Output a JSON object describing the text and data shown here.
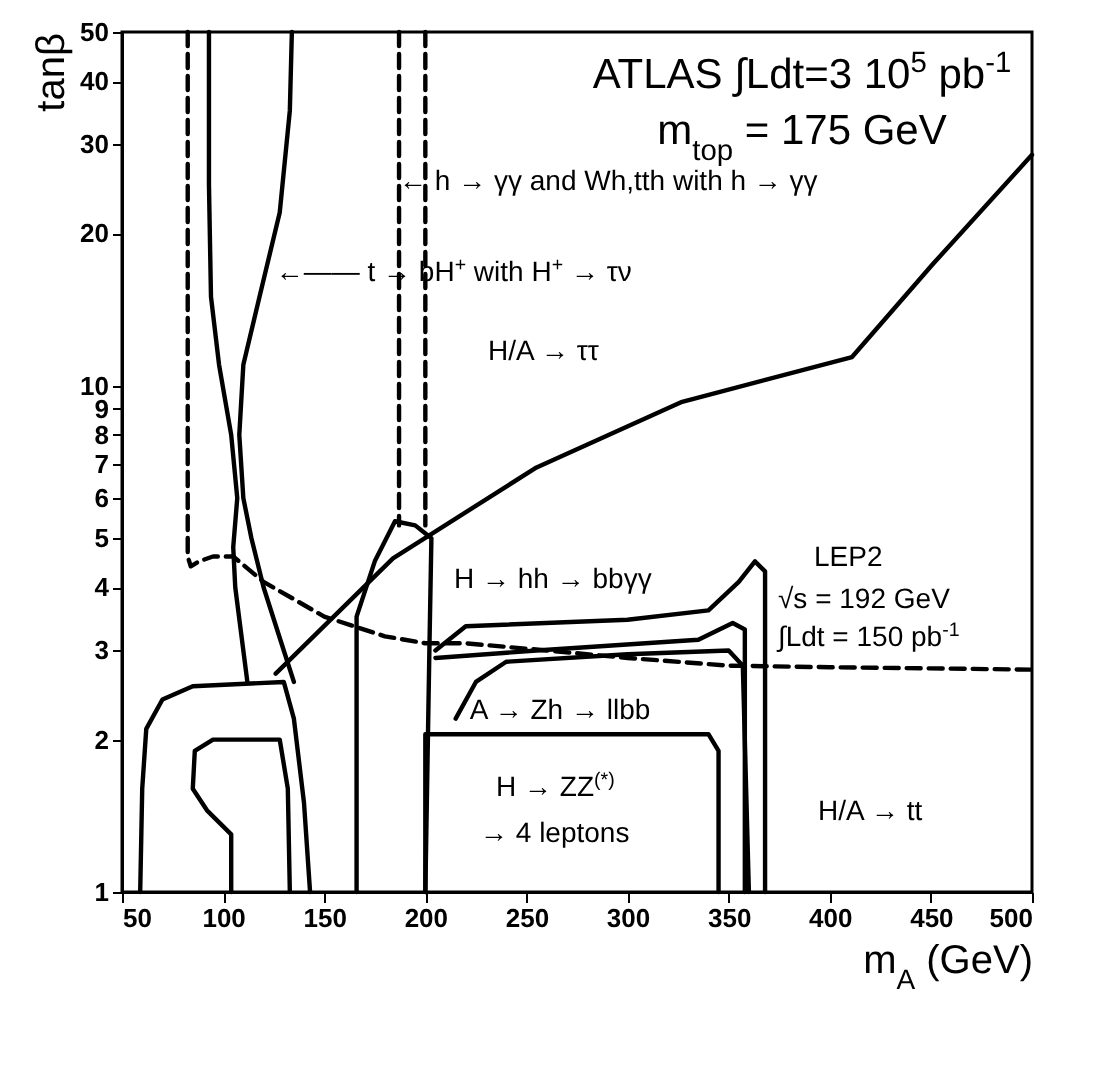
{
  "chart_data": {
    "type": "line",
    "title": "ATLAS ∫Ldt=3 10$^{5}$ pb$^{-1}$",
    "subtitle": "m$_{top}$ = 175 GeV",
    "xlabel": "m$_{A}$ (GeV)",
    "ylabel": "tanβ",
    "log": "y",
    "xlim": [
      50,
      500
    ],
    "ylim": [
      1,
      50
    ],
    "xticks": [
      50,
      100,
      150,
      200,
      250,
      300,
      350,
      400,
      450,
      500
    ],
    "yticks": [
      1,
      2,
      3,
      4,
      5,
      6,
      7,
      8,
      9,
      10,
      20,
      30,
      40,
      50
    ],
    "series": [
      {
        "color": "#000000",
        "line_style": "dashed",
        "x": [
          82.5,
          82.5,
          84,
          88,
          95,
          105,
          120,
          150,
          180,
          200,
          220,
          260,
          300,
          350,
          400,
          500
        ],
        "values": [
          50,
          4.6,
          4.4,
          4.5,
          4.6,
          4.6,
          4.1,
          3.5,
          3.2,
          3.1,
          3.1,
          3.0,
          2.9,
          2.8,
          2.78,
          2.75
        ]
      },
      {
        "color": "#000000",
        "x": [
          93,
          93,
          94,
          98,
          104,
          107,
          105,
          106,
          110,
          112
        ],
        "values": [
          50,
          25,
          15,
          11,
          8,
          6,
          4.8,
          4,
          3,
          2.6
        ]
      },
      {
        "color": "#000000",
        "x": [
          134,
          133,
          128,
          118,
          110,
          108,
          110,
          114,
          120,
          130,
          135
        ],
        "values": [
          50,
          35,
          22,
          15,
          11,
          8,
          6,
          5,
          4,
          3,
          2.6
        ]
      },
      {
        "color": "#000000",
        "line_style": "dashed",
        "x": [
          187,
          187
        ],
        "values": [
          50,
          5.3
        ]
      },
      {
        "color": "#000000",
        "line_style": "dashed",
        "x": [
          200,
          200
        ],
        "values": [
          50,
          5.3
        ]
      },
      {
        "color": "#000000",
        "x": [
          126,
          184,
          241,
          255,
          327,
          411,
          451,
          500
        ],
        "values": [
          2.7,
          4.56,
          6.36,
          6.9,
          9.3,
          11.4,
          17.4,
          28.6
        ]
      },
      {
        "color": "#000000",
        "x": [
          205,
          220,
          300,
          340,
          355,
          363,
          368,
          368
        ],
        "values": [
          3.0,
          3.35,
          3.45,
          3.6,
          4.1,
          4.5,
          4.3,
          1
        ]
      },
      {
        "color": "#000000",
        "x": [
          205,
          255,
          335,
          352,
          358,
          358
        ],
        "values": [
          2.9,
          3.0,
          3.15,
          3.4,
          3.3,
          1
        ]
      },
      {
        "color": "#000000",
        "x": [
          200,
          200,
          340,
          345,
          345
        ],
        "values": [
          1,
          2.05,
          2.05,
          1.9,
          1
        ]
      },
      {
        "color": "#000000",
        "x": [
          215,
          225,
          240,
          300,
          350,
          357,
          360
        ],
        "values": [
          2.2,
          2.6,
          2.85,
          2.95,
          3.0,
          2.8,
          1
        ]
      },
      {
        "color": "#000000",
        "x": [
          166,
          166,
          175,
          185,
          195,
          203,
          202,
          200
        ],
        "values": [
          1,
          3.5,
          4.5,
          5.4,
          5.3,
          5,
          3,
          1
        ]
      },
      {
        "color": "#000000",
        "x": [
          59,
          60,
          62,
          70,
          85,
          130,
          135,
          140,
          143
        ],
        "values": [
          1,
          1.6,
          2.1,
          2.4,
          2.55,
          2.6,
          2.2,
          1.5,
          1
        ]
      },
      {
        "color": "#000000",
        "x": [
          104,
          104,
          92,
          85,
          86,
          95,
          128,
          132,
          133
        ],
        "values": [
          1,
          1.3,
          1.45,
          1.6,
          1.9,
          2.0,
          2.0,
          1.6,
          1
        ]
      }
    ],
    "annotations": [
      {
        "text": "← h → γγ and Wh,tth with h → γγ",
        "x": 187,
        "y": 25.3
      },
      {
        "text": "←—— t → bH$^{+}$ with H$^{+}$ → τν",
        "x": 126,
        "y": 16.7
      },
      "H/A → ττ",
      "H → hh → bbγγ",
      "LEP2",
      "√s = 192 GeV",
      "∫Ldt = 150 pb$^{-1}$",
      {
        "text": "A → Zh → llbb",
        "x": 222,
        "y": 2.28
      },
      "H → ZZ$^{(*)}$",
      "→ 4 leptons",
      "H/A → tt"
    ]
  }
}
